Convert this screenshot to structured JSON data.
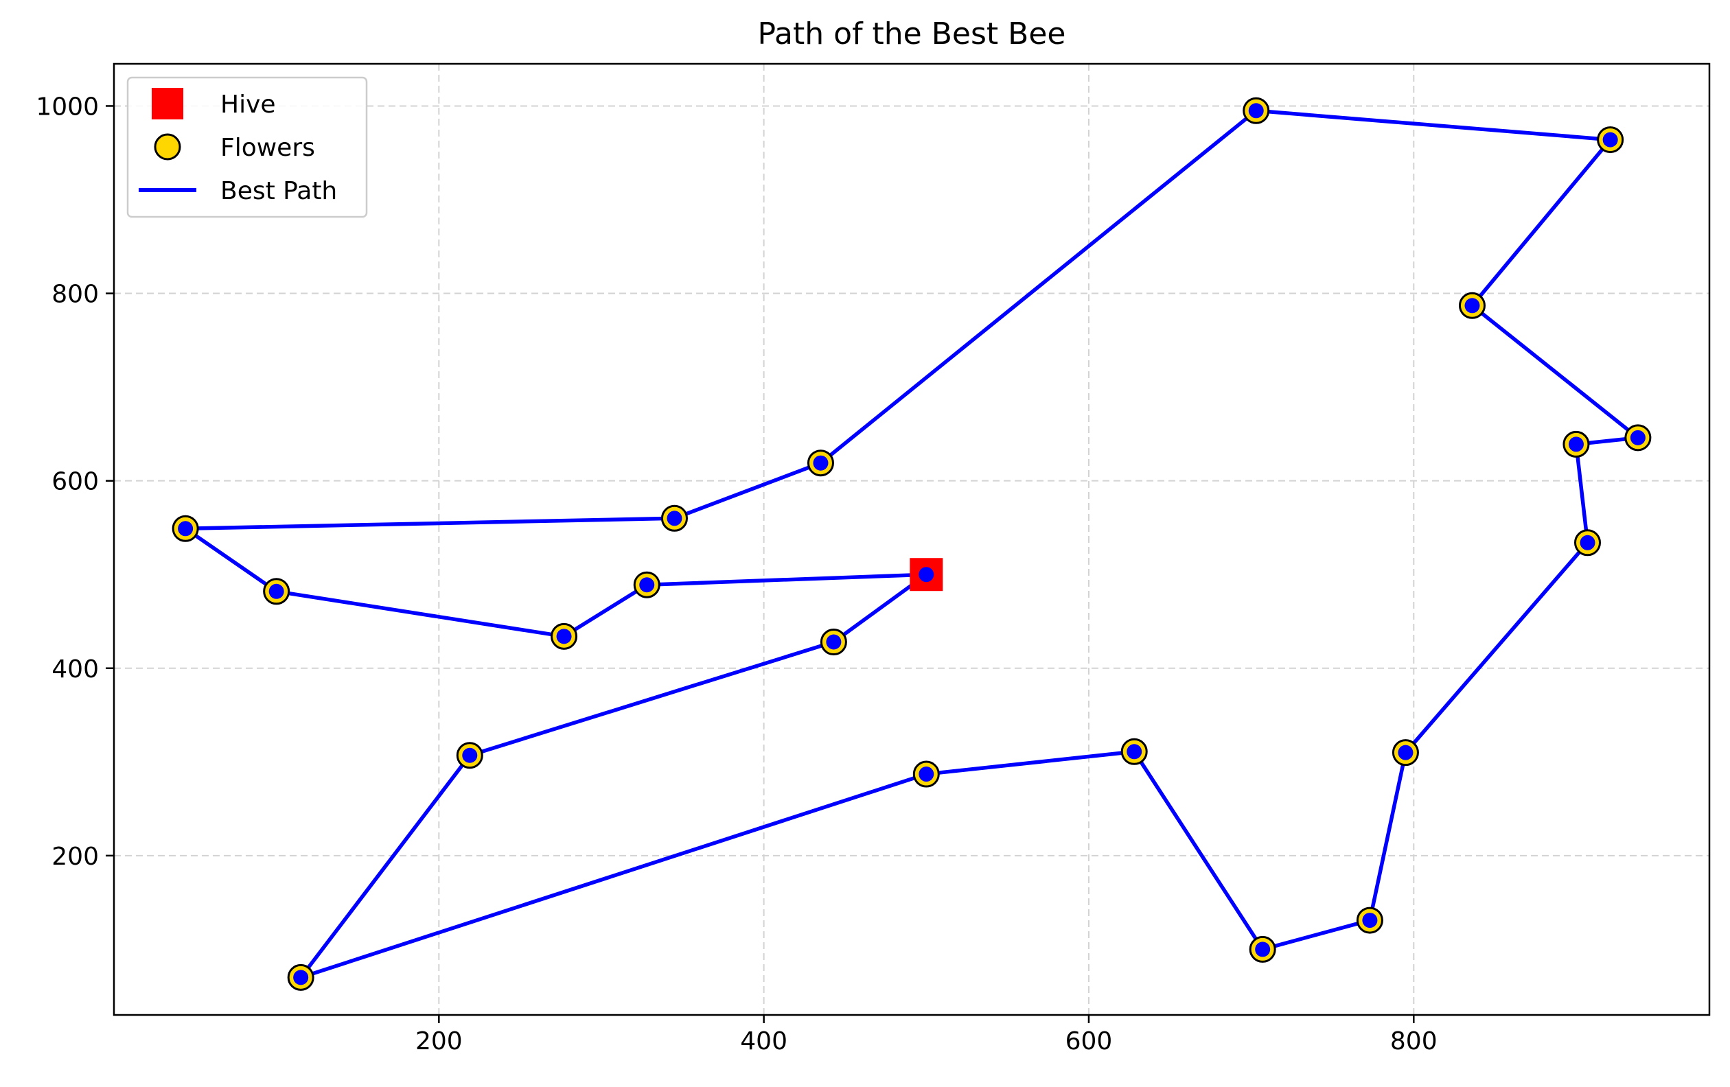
{
  "chart_data": {
    "type": "scatter",
    "title": "Path of the Best Bee",
    "xlabel": "",
    "ylabel": "",
    "xlim": [
      0,
      982
    ],
    "ylim": [
      30,
      1045
    ],
    "xticks": [
      200,
      400,
      600,
      800
    ],
    "yticks": [
      200,
      400,
      600,
      800,
      1000
    ],
    "grid": true,
    "legend_position": "upper-left",
    "legend": [
      {
        "label": "Hive",
        "marker": "square",
        "color": "#ff0000"
      },
      {
        "label": "Flowers",
        "marker": "circle",
        "color": "#ffd700"
      },
      {
        "label": "Best Path",
        "marker": "line",
        "color": "#0000ff"
      }
    ],
    "hive": {
      "name": "Hive",
      "x": 500,
      "y": 500
    },
    "flowers": {
      "name": "Flowers",
      "points": [
        [
          328,
          489
        ],
        [
          277,
          434
        ],
        [
          100,
          482
        ],
        [
          44,
          549
        ],
        [
          345,
          560
        ],
        [
          435,
          619
        ],
        [
          703,
          995
        ],
        [
          921,
          964
        ],
        [
          836,
          787
        ],
        [
          938,
          646
        ],
        [
          900,
          639
        ],
        [
          907,
          534
        ],
        [
          795,
          310
        ],
        [
          773,
          131
        ],
        [
          707,
          100
        ],
        [
          628,
          311
        ],
        [
          500,
          287
        ],
        [
          115,
          70
        ],
        [
          219,
          307
        ],
        [
          443,
          428
        ]
      ]
    },
    "best_path": {
      "name": "Best Path",
      "points": [
        [
          500,
          500
        ],
        [
          328,
          489
        ],
        [
          277,
          434
        ],
        [
          100,
          482
        ],
        [
          44,
          549
        ],
        [
          345,
          560
        ],
        [
          435,
          619
        ],
        [
          703,
          995
        ],
        [
          921,
          964
        ],
        [
          836,
          787
        ],
        [
          938,
          646
        ],
        [
          900,
          639
        ],
        [
          907,
          534
        ],
        [
          795,
          310
        ],
        [
          773,
          131
        ],
        [
          707,
          100
        ],
        [
          628,
          311
        ],
        [
          500,
          287
        ],
        [
          115,
          70
        ],
        [
          219,
          307
        ],
        [
          443,
          428
        ],
        [
          500,
          500
        ]
      ]
    },
    "colors": {
      "hive": "#ff0000",
      "flower_fill": "#ffd700",
      "flower_edge": "#000000",
      "path": "#0000ff",
      "path_marker": "#0000ff",
      "grid": "#d3d3d3",
      "axes": "#000000"
    }
  }
}
